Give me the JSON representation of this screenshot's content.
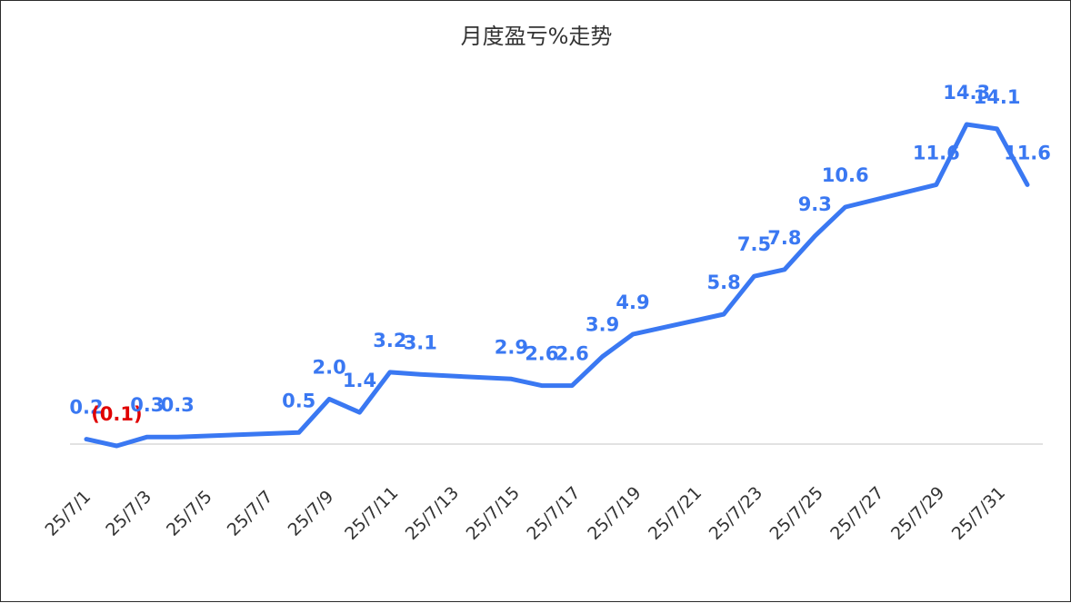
{
  "chart_data": {
    "type": "line",
    "title": "月度盈亏%走势",
    "xlabel": "",
    "ylabel": "",
    "x": [
      "25/7/1",
      "25/7/2",
      "25/7/3",
      "25/7/4",
      "25/7/8",
      "25/7/9",
      "25/7/10",
      "25/7/11",
      "25/7/12",
      "25/7/15",
      "25/7/16",
      "25/7/17",
      "25/7/18",
      "25/7/19",
      "25/7/22",
      "25/7/23",
      "25/7/24",
      "25/7/25",
      "25/7/26",
      "25/7/29",
      "25/7/30",
      "25/7/31",
      "25/8/1"
    ],
    "values": [
      0.2,
      -0.1,
      0.3,
      0.3,
      0.5,
      2.0,
      1.4,
      3.2,
      3.1,
      2.9,
      2.6,
      2.6,
      3.9,
      4.9,
      5.8,
      7.5,
      7.8,
      9.3,
      10.6,
      11.6,
      14.3,
      14.1,
      11.6
    ],
    "value_labels": [
      "0.2",
      "(0.1)",
      "0.3",
      "0.3",
      "0.5",
      "2.0",
      "1.4",
      "3.2",
      "3.1",
      "2.9",
      "2.6",
      "2.6",
      "3.9",
      "4.9",
      "5.8",
      "7.5",
      "7.8",
      "9.3",
      "10.6",
      "11.6",
      "14.3",
      "14.1",
      "11.6"
    ],
    "x_ticks": [
      "25/7/1",
      "25/7/3",
      "25/7/5",
      "25/7/7",
      "25/7/9",
      "25/7/11",
      "25/7/13",
      "25/7/15",
      "25/7/17",
      "25/7/19",
      "25/7/21",
      "25/7/23",
      "25/7/25",
      "25/7/27",
      "25/7/29",
      "25/7/31"
    ],
    "x_range": [
      "25/7/1",
      "25/8/1"
    ],
    "ylim": [
      -0.1,
      14.3
    ],
    "grid": false,
    "legend": "none",
    "colors": {
      "line": "#3a78f2",
      "positive_label": "#3a78f2",
      "negative_label": "#e00000",
      "drop_line": "#a9c4f5",
      "axis": "#d9d9d9"
    }
  }
}
